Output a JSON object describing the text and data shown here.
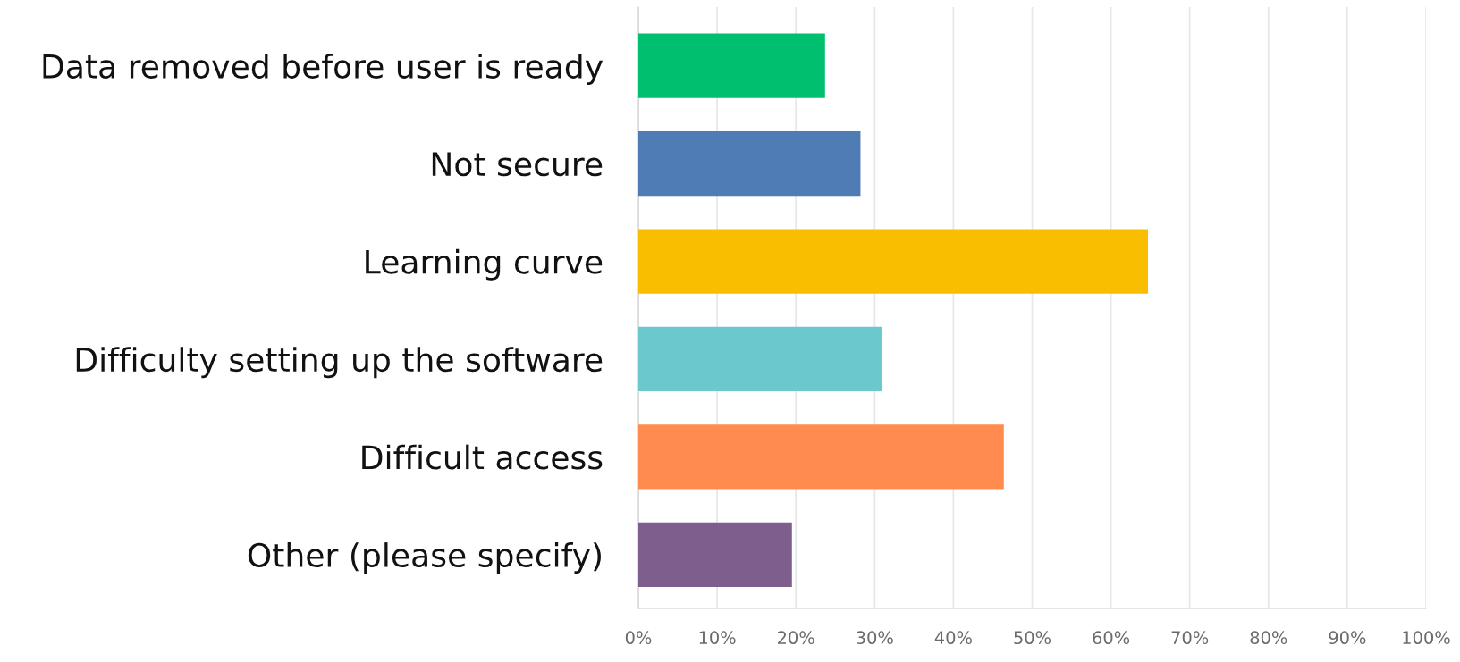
{
  "chart_data": {
    "type": "bar",
    "orientation": "horizontal",
    "categories": [
      "Data removed before user is ready",
      "Not secure",
      "Learning curve",
      "Difficulty setting up the software",
      "Difficult access",
      "Other (please specify)"
    ],
    "values": [
      23.7,
      28.2,
      64.7,
      30.9,
      46.4,
      19.5
    ],
    "colors": [
      "#00bf6f",
      "#507cb6",
      "#f9be00",
      "#6bc8cd",
      "#ff8b4f",
      "#7d5e8d"
    ],
    "xlim": [
      0,
      100
    ],
    "xticks": [
      {
        "value": 0,
        "label": "0%"
      },
      {
        "value": 10,
        "label": "10%"
      },
      {
        "value": 20,
        "label": "20%"
      },
      {
        "value": 30,
        "label": "30%"
      },
      {
        "value": 40,
        "label": "40%"
      },
      {
        "value": 50,
        "label": "50%"
      },
      {
        "value": 60,
        "label": "60%"
      },
      {
        "value": 70,
        "label": "70%"
      },
      {
        "value": 80,
        "label": "80%"
      },
      {
        "value": 90,
        "label": "90%"
      },
      {
        "value": 100,
        "label": "100%"
      }
    ],
    "grid": "x",
    "legend": false
  }
}
